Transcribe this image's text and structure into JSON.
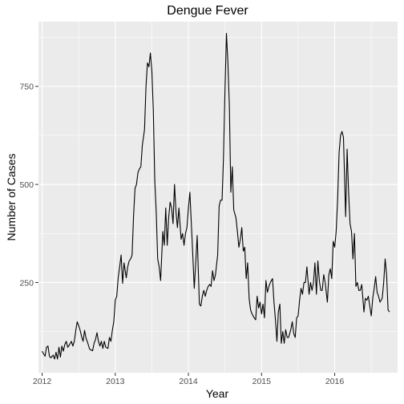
{
  "chart_data": {
    "type": "line",
    "title": "Dengue Fever",
    "xlabel": "Year",
    "ylabel": "Number of Cases",
    "xlim": [
      2011.95,
      2016.86
    ],
    "ylim": [
      20,
      915
    ],
    "x_ticks": [
      2012,
      2013,
      2014,
      2015,
      2016
    ],
    "x_tick_labels": [
      "2012",
      "2013",
      "2014",
      "2015",
      "2016"
    ],
    "y_ticks": [
      250,
      500,
      750
    ],
    "y_tick_labels": [
      "250",
      "500",
      "750"
    ],
    "grid": true,
    "legend": "none",
    "colors": {
      "panel": "#ebebeb",
      "grid_major": "#ffffff",
      "line": "#000000",
      "tick": "#333333"
    },
    "series": [
      {
        "x": [
          2012.0,
          2012.02,
          2012.04,
          2012.06,
          2012.08,
          2012.1,
          2012.12,
          2012.15,
          2012.17,
          2012.19,
          2012.21,
          2012.23,
          2012.25,
          2012.27,
          2012.29,
          2012.31,
          2012.33,
          2012.35,
          2012.37,
          2012.4,
          2012.42,
          2012.44,
          2012.46,
          2012.48,
          2012.5,
          2012.52,
          2012.54,
          2012.56,
          2012.58,
          2012.6,
          2012.62,
          2012.65,
          2012.67,
          2012.69,
          2012.71,
          2012.73,
          2012.75,
          2012.77,
          2012.79,
          2012.81,
          2012.83,
          2012.85,
          2012.87,
          2012.9,
          2012.92,
          2012.94,
          2012.96,
          2012.98,
          2013.0,
          2013.02,
          2013.04,
          2013.06,
          2013.08,
          2013.1,
          2013.12,
          2013.15,
          2013.17,
          2013.19,
          2013.21,
          2013.23,
          2013.25,
          2013.27,
          2013.29,
          2013.31,
          2013.33,
          2013.35,
          2013.37,
          2013.4,
          2013.42,
          2013.44,
          2013.46,
          2013.48,
          2013.5,
          2013.52,
          2013.54,
          2013.56,
          2013.58,
          2013.6,
          2013.62,
          2013.65,
          2013.67,
          2013.69,
          2013.71,
          2013.73,
          2013.75,
          2013.77,
          2013.79,
          2013.81,
          2013.83,
          2013.85,
          2013.87,
          2013.9,
          2013.92,
          2013.94,
          2013.96,
          2013.98,
          2014.0,
          2014.02,
          2014.04,
          2014.06,
          2014.08,
          2014.1,
          2014.12,
          2014.15,
          2014.17,
          2014.19,
          2014.21,
          2014.23,
          2014.25,
          2014.27,
          2014.29,
          2014.31,
          2014.33,
          2014.35,
          2014.37,
          2014.4,
          2014.42,
          2014.44,
          2014.46,
          2014.48,
          2014.5,
          2014.52,
          2014.54,
          2014.56,
          2014.58,
          2014.6,
          2014.62,
          2014.65,
          2014.67,
          2014.69,
          2014.71,
          2014.73,
          2014.75,
          2014.77,
          2014.79,
          2014.81,
          2014.83,
          2014.85,
          2014.87,
          2014.9,
          2014.92,
          2014.94,
          2014.96,
          2014.98,
          2015.0,
          2015.02,
          2015.04,
          2015.06,
          2015.08,
          2015.1,
          2015.12,
          2015.15,
          2015.17,
          2015.19,
          2015.21,
          2015.23,
          2015.25,
          2015.27,
          2015.29,
          2015.31,
          2015.33,
          2015.35,
          2015.37,
          2015.4,
          2015.42,
          2015.44,
          2015.46,
          2015.48,
          2015.5,
          2015.52,
          2015.54,
          2015.56,
          2015.58,
          2015.6,
          2015.62,
          2015.65,
          2015.67,
          2015.69,
          2015.71,
          2015.73,
          2015.75,
          2015.77,
          2015.79,
          2015.81,
          2015.83,
          2015.85,
          2015.87,
          2015.9,
          2015.92,
          2015.94,
          2015.96,
          2015.98,
          2016.0,
          2016.02,
          2016.04,
          2016.06,
          2016.08,
          2016.1,
          2016.12,
          2016.15,
          2016.17,
          2016.19,
          2016.21,
          2016.23,
          2016.25,
          2016.27,
          2016.29,
          2016.31,
          2016.33,
          2016.35,
          2016.37,
          2016.4,
          2016.42,
          2016.44,
          2016.46,
          2016.48,
          2016.5,
          2016.52,
          2016.54,
          2016.56,
          2016.58,
          2016.6,
          2016.62,
          2016.65,
          2016.67,
          2016.69,
          2016.71,
          2016.73,
          2016.75
        ],
        "values": [
          75,
          68,
          62,
          85,
          88,
          62,
          58,
          65,
          55,
          72,
          55,
          85,
          60,
          88,
          75,
          92,
          100,
          85,
          90,
          100,
          88,
          100,
          128,
          150,
          140,
          128,
          112,
          100,
          128,
          108,
          98,
          80,
          78,
          76,
          95,
          105,
          122,
          100,
          88,
          100,
          82,
          100,
          85,
          82,
          110,
          100,
          128,
          150,
          205,
          215,
          262,
          290,
          320,
          248,
          300,
          262,
          290,
          305,
          310,
          320,
          420,
          490,
          500,
          530,
          540,
          545,
          600,
          640,
          750,
          810,
          800,
          835,
          790,
          690,
          510,
          430,
          310,
          290,
          255,
          380,
          345,
          440,
          345,
          415,
          455,
          440,
          400,
          500,
          430,
          390,
          440,
          360,
          375,
          345,
          375,
          390,
          440,
          480,
          400,
          320,
          235,
          300,
          370,
          195,
          190,
          215,
          230,
          215,
          230,
          240,
          245,
          240,
          280,
          255,
          270,
          320,
          445,
          460,
          460,
          570,
          740,
          885,
          810,
          700,
          480,
          545,
          435,
          415,
          380,
          340,
          360,
          390,
          330,
          340,
          260,
          300,
          210,
          180,
          170,
          160,
          155,
          215,
          185,
          200,
          170,
          195,
          160,
          255,
          225,
          240,
          250,
          260,
          200,
          155,
          100,
          175,
          195,
          95,
          125,
          95,
          130,
          110,
          110,
          130,
          150,
          120,
          110,
          160,
          165,
          205,
          235,
          220,
          250,
          250,
          290,
          220,
          250,
          230,
          250,
          300,
          220,
          305,
          255,
          230,
          230,
          270,
          250,
          200,
          270,
          285,
          260,
          355,
          340,
          380,
          460,
          580,
          625,
          635,
          620,
          418,
          590,
          480,
          400,
          380,
          310,
          375,
          240,
          250,
          230,
          230,
          245,
          175,
          210,
          205,
          215,
          190,
          165,
          210,
          235,
          265,
          225,
          215,
          200,
          210,
          250,
          310,
          270,
          180,
          175
        ]
      }
    ]
  }
}
